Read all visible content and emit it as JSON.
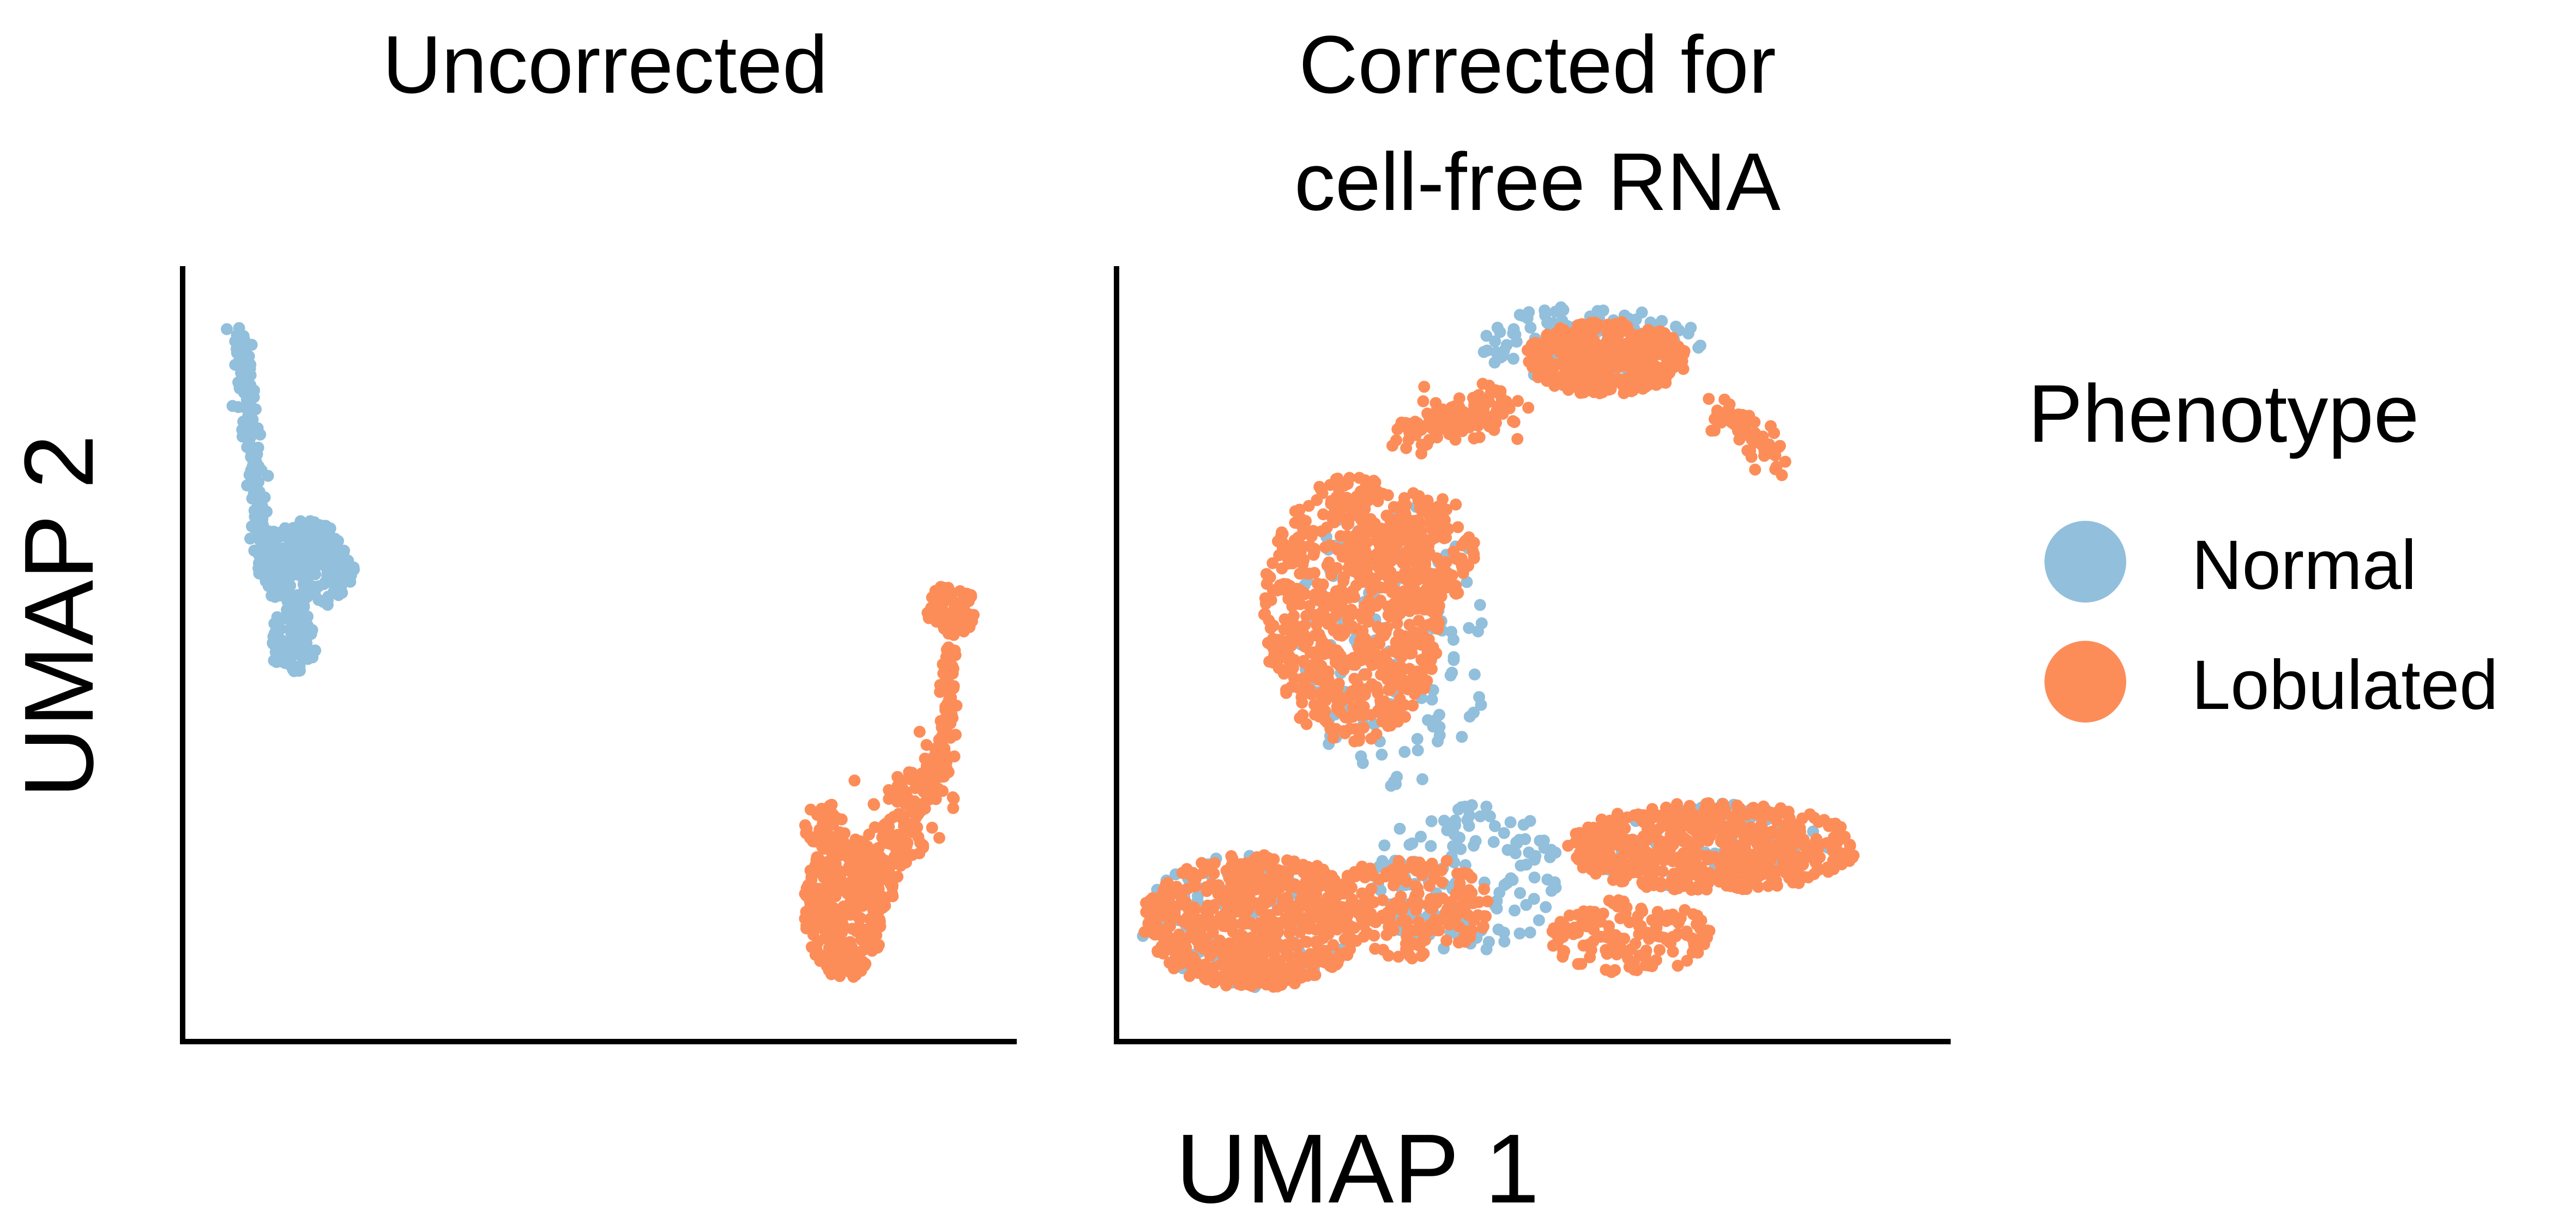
{
  "chart_data": {
    "type": "scatter",
    "x_axis_label": "UMAP 1",
    "y_axis_label": "UMAP 2",
    "legend": {
      "title": "Phenotype",
      "position": "right",
      "entries": [
        {
          "name": "Normal",
          "color": "#92bfdb"
        },
        {
          "name": "Lobulated",
          "color": "#fc8d59"
        }
      ]
    },
    "panels": [
      {
        "title": "Uncorrected",
        "xlim": [
          0,
          100
        ],
        "ylim": [
          0,
          100
        ],
        "clusters": [
          {
            "series": "Normal",
            "shape": "tail",
            "from": [
              6,
              94
            ],
            "to": [
              9,
              63
            ],
            "spread": 1.2,
            "count": 150
          },
          {
            "series": "Normal",
            "shape": "ellipse",
            "center": [
              14,
              62
            ],
            "radius": [
              6,
              6
            ],
            "count": 230
          },
          {
            "series": "Normal",
            "shape": "ellipse",
            "center": [
              12.5,
              52
            ],
            "radius": [
              3,
              4.5
            ],
            "count": 90
          },
          {
            "series": "Lobulated",
            "shape": "tail",
            "from": [
              93,
              53
            ],
            "to": [
              92,
              34
            ],
            "spread": 1.0,
            "count": 90
          },
          {
            "series": "Lobulated",
            "shape": "ellipse",
            "center": [
              93,
              56
            ],
            "radius": [
              3,
              3.5
            ],
            "count": 70
          },
          {
            "series": "Lobulated",
            "shape": "tail",
            "from": [
              91,
              36
            ],
            "to": [
              82,
              16
            ],
            "spread": 3.5,
            "count": 200
          },
          {
            "series": "Lobulated",
            "shape": "ellipse",
            "center": [
              80,
              16
            ],
            "radius": [
              5,
              10
            ],
            "count": 340
          },
          {
            "series": "Lobulated",
            "shape": "ellipse",
            "center": [
              77.5,
              27
            ],
            "radius": [
              2.5,
              3
            ],
            "count": 40
          }
        ]
      },
      {
        "title": "Corrected for cell-free RNA",
        "xlim": [
          0,
          100
        ],
        "ylim": [
          0,
          100
        ],
        "clusters": [
          {
            "series": "Normal",
            "shape": "ellipse",
            "center": [
              57,
              92
            ],
            "radius": [
              14,
              5
            ],
            "count": 120
          },
          {
            "series": "Normal",
            "shape": "ellipse",
            "center": [
              33,
              52
            ],
            "radius": [
              12,
              20
            ],
            "count": 130
          },
          {
            "series": "Normal",
            "shape": "ellipse",
            "center": [
              16,
              14
            ],
            "radius": [
              14,
              9
            ],
            "count": 110
          },
          {
            "series": "Normal",
            "shape": "ellipse",
            "center": [
              42,
              20
            ],
            "radius": [
              12,
              10
            ],
            "count": 140
          },
          {
            "series": "Normal",
            "shape": "ellipse",
            "center": [
              72,
              24
            ],
            "radius": [
              15,
              6
            ],
            "count": 110
          },
          {
            "series": "Lobulated",
            "shape": "ellipse",
            "center": [
              59,
              90
            ],
            "radius": [
              10,
              5
            ],
            "count": 360
          },
          {
            "series": "Lobulated",
            "shape": "tail",
            "from": [
              47,
              84
            ],
            "to": [
              35,
              80
            ],
            "spread": 3.0,
            "count": 140
          },
          {
            "series": "Lobulated",
            "shape": "tail",
            "from": [
              72,
              84
            ],
            "to": [
              80,
              76
            ],
            "spread": 2.0,
            "count": 70
          },
          {
            "series": "Lobulated",
            "shape": "ellipse",
            "center": [
              28,
              56
            ],
            "radius": [
              11,
              18
            ],
            "count": 700
          },
          {
            "series": "Lobulated",
            "shape": "ellipse",
            "center": [
              37,
              64
            ],
            "radius": [
              6,
              8
            ],
            "count": 140
          },
          {
            "series": "Lobulated",
            "shape": "ellipse",
            "center": [
              16,
              14
            ],
            "radius": [
              14,
              9
            ],
            "count": 620
          },
          {
            "series": "Lobulated",
            "shape": "ellipse",
            "center": [
              35,
              16
            ],
            "radius": [
              10,
              7
            ],
            "count": 200
          },
          {
            "series": "Lobulated",
            "shape": "ellipse",
            "center": [
              72,
              24
            ],
            "radius": [
              18,
              6
            ],
            "count": 560
          },
          {
            "series": "Lobulated",
            "shape": "ellipse",
            "center": [
              62,
              12
            ],
            "radius": [
              10,
              5
            ],
            "count": 140
          }
        ]
      }
    ]
  }
}
